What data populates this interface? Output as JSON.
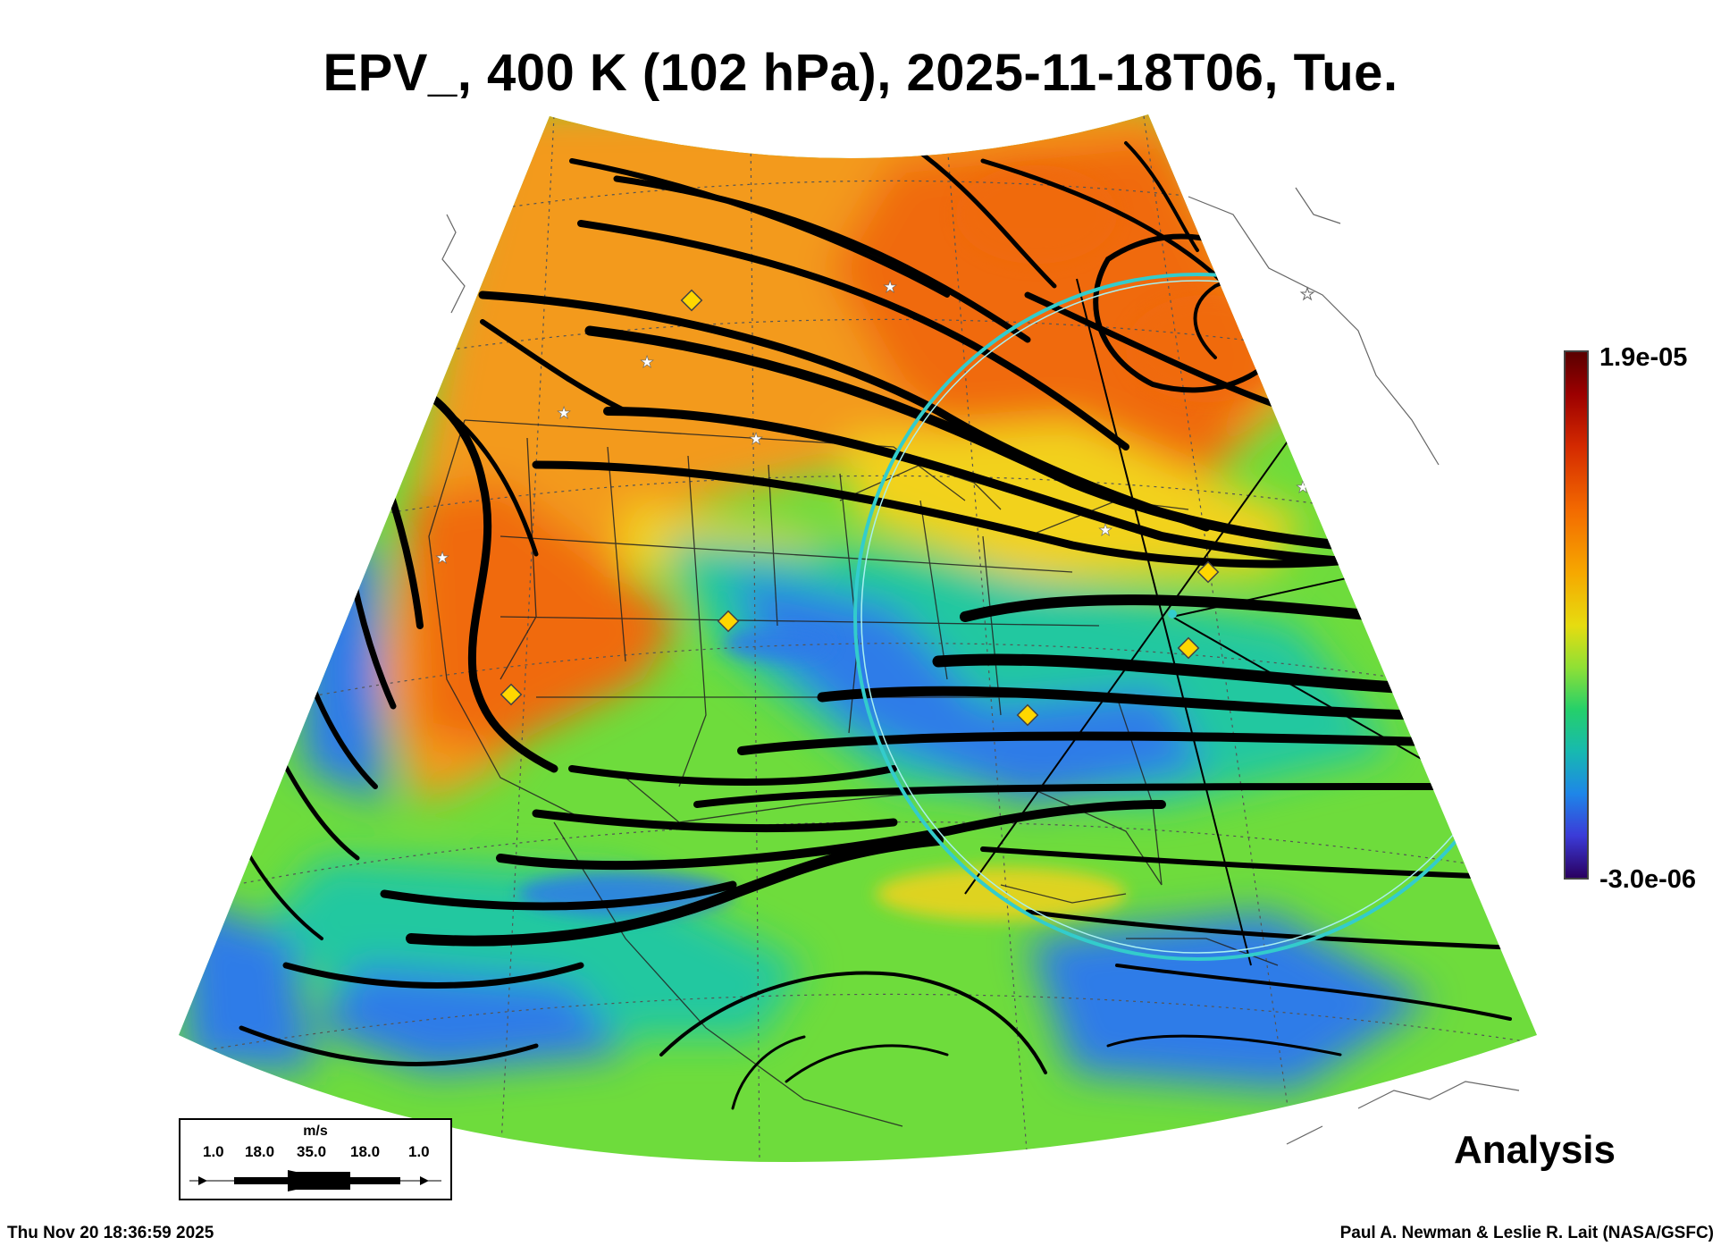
{
  "title": "EPV_, 400 K (102 hPa), 2025-11-18T06, Tue.",
  "colorbar": {
    "max_label": "1.9e-05",
    "min_label": "-3.0e-06",
    "colors": [
      "#5a0000",
      "#d42a00",
      "#f6a800",
      "#e6dc10",
      "#25d06a",
      "#17b9b0",
      "#1e86e8",
      "#2a0060"
    ]
  },
  "legend": {
    "unit": "m/s",
    "values": [
      "1.0",
      "18.0",
      "35.0",
      "18.0",
      "1.0"
    ]
  },
  "analysis_label": "Analysis",
  "footer": {
    "timestamp": "Thu Nov 20 18:36:59 2025",
    "credit": "Paul A. Newman & Leslie R. Lait (NASA/GSFC)"
  },
  "map": {
    "field_colors": {
      "orange": "#f39a1e",
      "red_orange": "#f06a10",
      "yellow": "#f2d21a",
      "green": "#6edc3c",
      "cyan": "#20c8a0",
      "blue": "#2e7ce8"
    },
    "marker_colors": {
      "diamond": "#ffd700",
      "star": "#ffffff",
      "circle": "#33cccc"
    }
  }
}
